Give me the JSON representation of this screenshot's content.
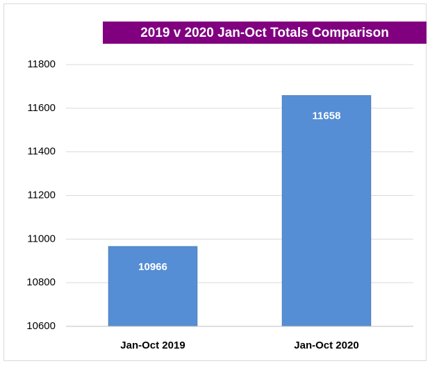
{
  "chart_data": {
    "type": "bar",
    "title": "2019 v 2020 Jan-Oct Totals Comparison",
    "categories": [
      "Jan-Oct 2019",
      "Jan-Oct 2020"
    ],
    "values": [
      10966,
      11658
    ],
    "color": "#558ed5",
    "ylim": [
      10600,
      11800
    ],
    "yticks": [
      10600,
      10800,
      11000,
      11200,
      11400,
      11600,
      11800
    ],
    "grid": true
  }
}
